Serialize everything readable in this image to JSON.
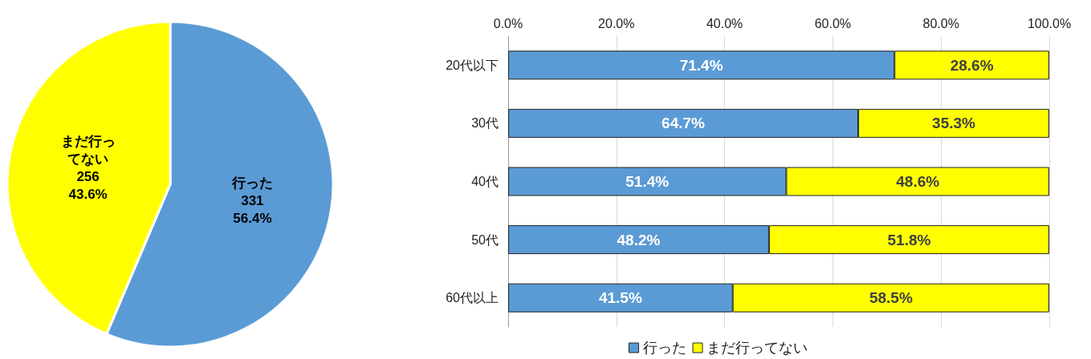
{
  "chart_data": [
    {
      "type": "pie",
      "categories": [
        "行った",
        "まだ行ってない"
      ],
      "values": [
        331,
        256
      ],
      "colors": [
        "#5b9bd5",
        "#ffff00"
      ],
      "value_labels": [
        "331\n56.4%",
        "256\n43.6%"
      ]
    },
    {
      "type": "bar",
      "orientation": "horizontal",
      "stacked": true,
      "categories": [
        "20代以下",
        "30代",
        "40代",
        "50代",
        "60代以上"
      ],
      "series": [
        {
          "name": "行った",
          "color": "#5b9bd5",
          "values": [
            71.4,
            64.7,
            51.4,
            48.2,
            41.5
          ],
          "value_labels": [
            "71.4%",
            "64.7%",
            "51.4%",
            "48.2%",
            "41.5%"
          ]
        },
        {
          "name": "まだ行ってない",
          "color": "#ffff00",
          "values": [
            28.6,
            35.3,
            48.6,
            51.8,
            58.5
          ],
          "value_labels": [
            "28.6%",
            "35.3%",
            "48.6%",
            "51.8%",
            "58.5%"
          ]
        }
      ],
      "xlim": [
        0,
        100
      ],
      "xticks": [
        {
          "value": 0,
          "label": "0.0%"
        },
        {
          "value": 20,
          "label": "20.0%"
        },
        {
          "value": 40,
          "label": "40.0%"
        },
        {
          "value": 60,
          "label": "60.0%"
        },
        {
          "value": 80,
          "label": "80.0%"
        },
        {
          "value": 100,
          "label": "100.0%"
        }
      ],
      "grid": "x",
      "legend": "bottom"
    }
  ]
}
